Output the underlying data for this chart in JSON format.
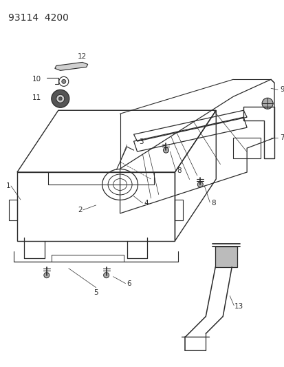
{
  "title": "93114  4200",
  "bg": "#ffffff",
  "lc": "#2a2a2a",
  "title_fontsize": 10,
  "label_fontsize": 7.5
}
